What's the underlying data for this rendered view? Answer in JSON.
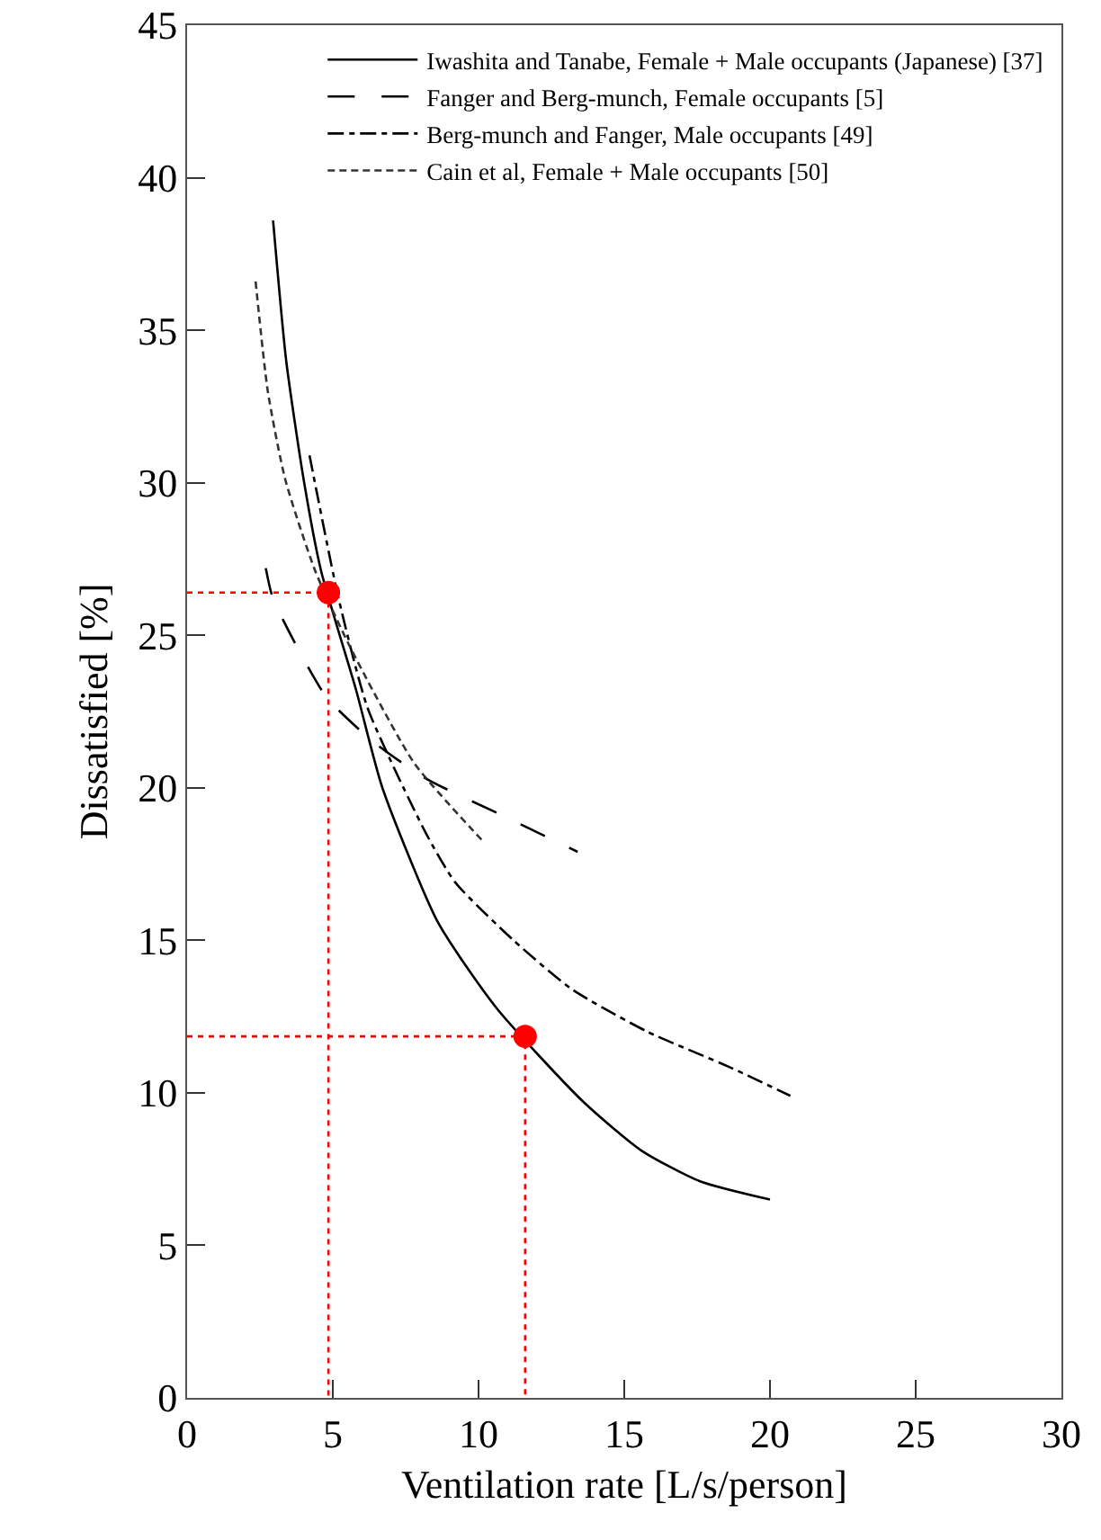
{
  "chart_data": {
    "type": "line",
    "xlabel": "Ventilation rate [L/s/person]",
    "ylabel": "Dissatisfied [%]",
    "xlim": [
      0,
      30
    ],
    "xticks": [
      0,
      5,
      10,
      15,
      20,
      25,
      30
    ],
    "ylim": [
      0,
      45
    ],
    "yticks": [
      0,
      5,
      10,
      15,
      20,
      25,
      30,
      35,
      40,
      45
    ],
    "grid": false,
    "legend": "top right",
    "marker": "none",
    "series": [
      {
        "name": "Iwashita and Tanabe, Female + Male occupants (Japanese) [37]",
        "color": "#000000",
        "line_style": "solid",
        "x": [
          2.95,
          3.4,
          4.0,
          4.6,
          5.8,
          6.7,
          8.6,
          10.6,
          13.6,
          15.6,
          17.6,
          20.0
        ],
        "values": [
          38.6,
          34.0,
          30.1,
          27.1,
          23.2,
          20.0,
          15.6,
          12.8,
          9.7,
          8.1,
          7.1,
          6.5
        ]
      },
      {
        "name": "Fanger and Berg-munch, Female occupants [5]",
        "color": "#000000",
        "line_style": "longdash",
        "x": [
          2.7,
          2.95,
          4.76,
          6.4,
          8.2,
          10.8,
          13.4
        ],
        "values": [
          27.2,
          26.2,
          23.0,
          21.5,
          20.3,
          19.1,
          17.9
        ]
      },
      {
        "name": "Berg-munch and Fanger, Male occupants [49]",
        "color": "#000000",
        "line_style": "dashdot",
        "x": [
          4.2,
          5.2,
          6.2,
          8.2,
          9.2,
          11.2,
          13.2,
          15.8,
          18.6,
          20.7
        ],
        "values": [
          30.9,
          26.2,
          22.6,
          18.5,
          16.9,
          15.0,
          13.4,
          12.0,
          10.85,
          9.9
        ]
      },
      {
        "name": "Cain et al, Female + Male occupants [50]",
        "color": "#333333",
        "line_style": "dashed",
        "x": [
          2.35,
          2.77,
          3.37,
          4.4,
          5.6,
          7.8,
          10.1
        ],
        "values": [
          36.6,
          33.0,
          30.1,
          27.1,
          24.6,
          20.8,
          18.3
        ]
      },
      {
        "color": "#ff0000",
        "line_style": "dotted",
        "x": [
          0,
          4.85,
          4.85
        ],
        "values": [
          26.4,
          26.4,
          0
        ]
      },
      {
        "color": "#ff0000",
        "line_style": "dotted",
        "x": [
          0,
          11.6,
          11.6
        ],
        "values": [
          11.85,
          11.85,
          0
        ]
      },
      {
        "type": "scatter",
        "marker": "circle",
        "color": "#ff0000",
        "x": [
          4.85,
          11.6
        ],
        "values": [
          26.4,
          11.85
        ]
      }
    ]
  }
}
